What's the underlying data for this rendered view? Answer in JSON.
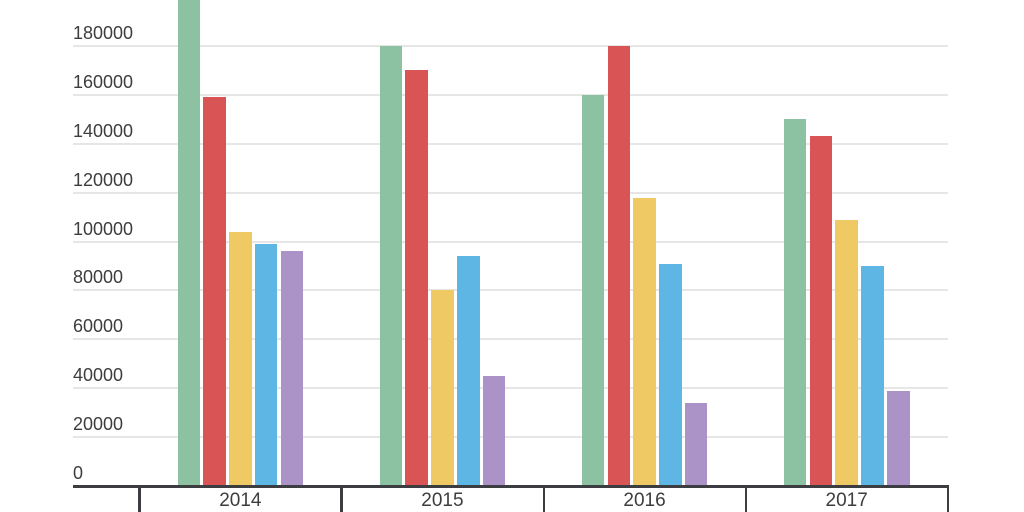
{
  "chart_data": {
    "type": "bar",
    "title": "",
    "xlabel": "",
    "ylabel": "",
    "categories": [
      "2014",
      "2015",
      "2016",
      "2017"
    ],
    "series": [
      {
        "name": "green",
        "color": "#8cc1a1",
        "values": [
          205000,
          180000,
          160000,
          150000
        ]
      },
      {
        "name": "red",
        "color": "#d95454",
        "values": [
          159000,
          170000,
          180000,
          143000
        ]
      },
      {
        "name": "yellow",
        "color": "#eec964",
        "values": [
          104000,
          80000,
          118000,
          109000
        ]
      },
      {
        "name": "blue",
        "color": "#5eb6e4",
        "values": [
          99000,
          94000,
          91000,
          90000
        ]
      },
      {
        "name": "purple",
        "color": "#ab92c7",
        "values": [
          96000,
          45000,
          34000,
          39000
        ]
      }
    ],
    "y_ticks": [
      0,
      20000,
      40000,
      60000,
      80000,
      100000,
      120000,
      140000,
      160000,
      180000
    ],
    "ylim": [
      0,
      200000
    ],
    "grid": true,
    "legend": "none",
    "notes": "first green bar (2014) extends past the visible top edge of the plot"
  },
  "colors": {
    "background": "#ffffff",
    "gridline": "#e6e6e6",
    "axis": "#3b3d40",
    "tick_text": "#3d3d3d"
  }
}
